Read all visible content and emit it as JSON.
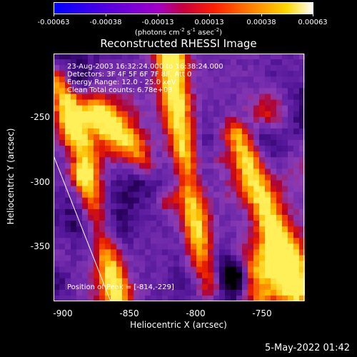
{
  "colorbar": {
    "ticks": [
      "-0.00063",
      "-0.00038",
      "-0.00013",
      "0.00013",
      "0.00038",
      "0.00063"
    ],
    "units_main": "(photons cm",
    "units_sup1": "-2",
    "units_mid": " s",
    "units_sup2": "-1",
    "units_mid2": " asec",
    "units_sup3": "-2",
    "units_end": ")"
  },
  "title": "Reconstructed RHESSI Image",
  "info": {
    "line1": "23-Aug-2003 16:32:24.000 to 16:38:24.000",
    "line2": "Detectors: 3F 4F 5F 6F 7F 8F, Att 0",
    "line3": "Energy Range: 12.0 - 25.0 keV",
    "line4": "Clean    Total counts: 6.78e+03",
    "peak": "Position of Peak = [-814,-229]"
  },
  "axes": {
    "xlabel": "Heliocentric X (arcsec)",
    "ylabel": "Heliocentric Y (arcsec)",
    "xticks": [
      "-900",
      "-850",
      "-800",
      "-750"
    ],
    "yticks": [
      "-250",
      "-300",
      "-350"
    ]
  },
  "footer": "5-May-2022 01:42"
}
